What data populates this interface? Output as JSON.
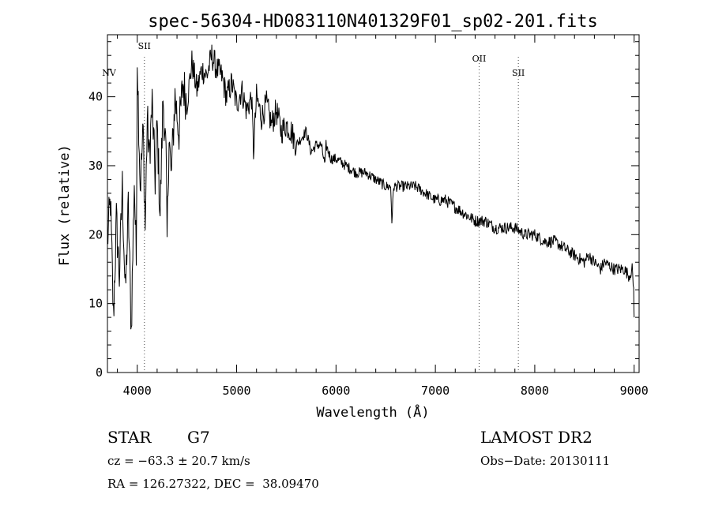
{
  "chart_data": {
    "type": "line",
    "title": "spec-56304-HD083110N401329F01_sp02-201.fits",
    "xlabel": "Wavelength (Å)",
    "ylabel": "Flux (relative)",
    "xlim": [
      3700,
      9050
    ],
    "ylim": [
      0,
      49
    ],
    "x_ticks": [
      4000,
      5000,
      6000,
      7000,
      8000,
      9000
    ],
    "y_ticks": [
      0,
      10,
      20,
      30,
      40
    ],
    "grid": false,
    "legend": "none",
    "series": [
      {
        "x": [
          3700,
          3730,
          3760,
          3790,
          3820,
          3850,
          3880,
          3910,
          3940,
          3970,
          3990,
          4000,
          4030,
          4060,
          4080,
          4101,
          4120,
          4150,
          4180,
          4200,
          4230,
          4260,
          4290,
          4300,
          4320,
          4340,
          4380,
          4420,
          4460,
          4500,
          4550,
          4600,
          4650,
          4700,
          4750,
          4800,
          4850,
          4900,
          4950,
          5000,
          5050,
          5100,
          5150,
          5170,
          5200,
          5250,
          5300,
          5350,
          5400,
          5450,
          5500,
          5550,
          5600,
          5650,
          5700,
          5750,
          5800,
          5850,
          5890,
          5900,
          5950,
          6000,
          6100,
          6200,
          6300,
          6400,
          6500,
          6550,
          6562,
          6580,
          6600,
          6700,
          6800,
          6900,
          7000,
          7100,
          7200,
          7300,
          7400,
          7500,
          7600,
          7700,
          7800,
          7900,
          8000,
          8100,
          8200,
          8300,
          8400,
          8498,
          8542,
          8600,
          8662,
          8700,
          8800,
          8900,
          8950,
          8980,
          8995,
          9000
        ],
        "y": [
          19,
          25,
          8,
          22,
          14,
          27,
          11,
          24,
          6,
          28,
          16,
          46,
          27,
          35,
          21,
          37,
          31,
          39,
          28,
          36,
          23,
          40,
          31,
          19,
          35,
          28,
          40,
          35,
          42,
          39,
          45,
          41,
          44,
          43,
          46,
          44,
          43,
          40,
          42,
          39,
          41,
          38,
          40,
          32,
          40,
          37,
          39,
          36,
          38,
          35,
          36,
          35,
          33,
          34,
          35,
          32,
          33,
          33,
          30,
          33,
          31,
          31,
          30,
          29,
          29,
          28,
          27,
          27,
          22,
          27,
          27,
          27,
          27,
          26,
          25,
          25,
          24,
          23,
          22,
          22,
          21,
          21,
          21,
          20,
          20,
          19,
          19,
          18,
          17,
          16,
          17,
          16,
          15,
          16,
          15,
          15,
          14,
          15,
          12,
          8
        ]
      }
    ],
    "line_labels": [
      {
        "text": "NV",
        "x": 3700,
        "dotted": false
      },
      {
        "text": "SII",
        "x": 4072,
        "dotted": true
      },
      {
        "text": "OII",
        "x": 7440,
        "dotted": true
      },
      {
        "text": "SII",
        "x": 7835,
        "dotted": true
      }
    ]
  },
  "footer": {
    "object_class": "STAR",
    "subclass": "G7",
    "release": "LAMOST DR2",
    "redshift": "cz = −63.3 ± 20.7 km/s",
    "obs_date": "Obs−Date: 20130111",
    "coords": "RA = 126.27322, DEC =  38.09470"
  }
}
